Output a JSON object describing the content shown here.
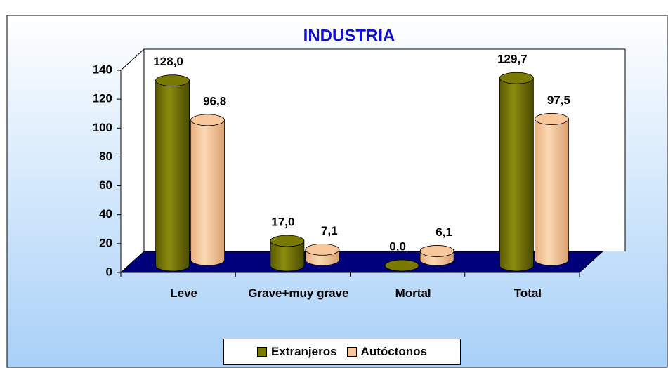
{
  "chart_data": {
    "type": "bar3d",
    "title": "INDUSTRIA",
    "categories": [
      "Leve",
      "Grave+muy grave",
      "Mortal",
      "Total"
    ],
    "series": [
      {
        "name": "Extranjeros",
        "color": "#7a7a00",
        "values": [
          128.0,
          17.0,
          0.0,
          129.7
        ],
        "value_labels": [
          "128,0",
          "17,0",
          "0,0",
          "129,7"
        ]
      },
      {
        "name": "Autóctonos",
        "color": "#f8c89c",
        "values": [
          96.8,
          7.1,
          6.1,
          97.5
        ],
        "value_labels": [
          "96,8",
          "7,1",
          "6,1",
          "97,5"
        ]
      }
    ],
    "ylim": [
      0,
      140
    ],
    "yticks": [
      0,
      20,
      40,
      60,
      80,
      100,
      120,
      140
    ],
    "legend": "bottom"
  }
}
